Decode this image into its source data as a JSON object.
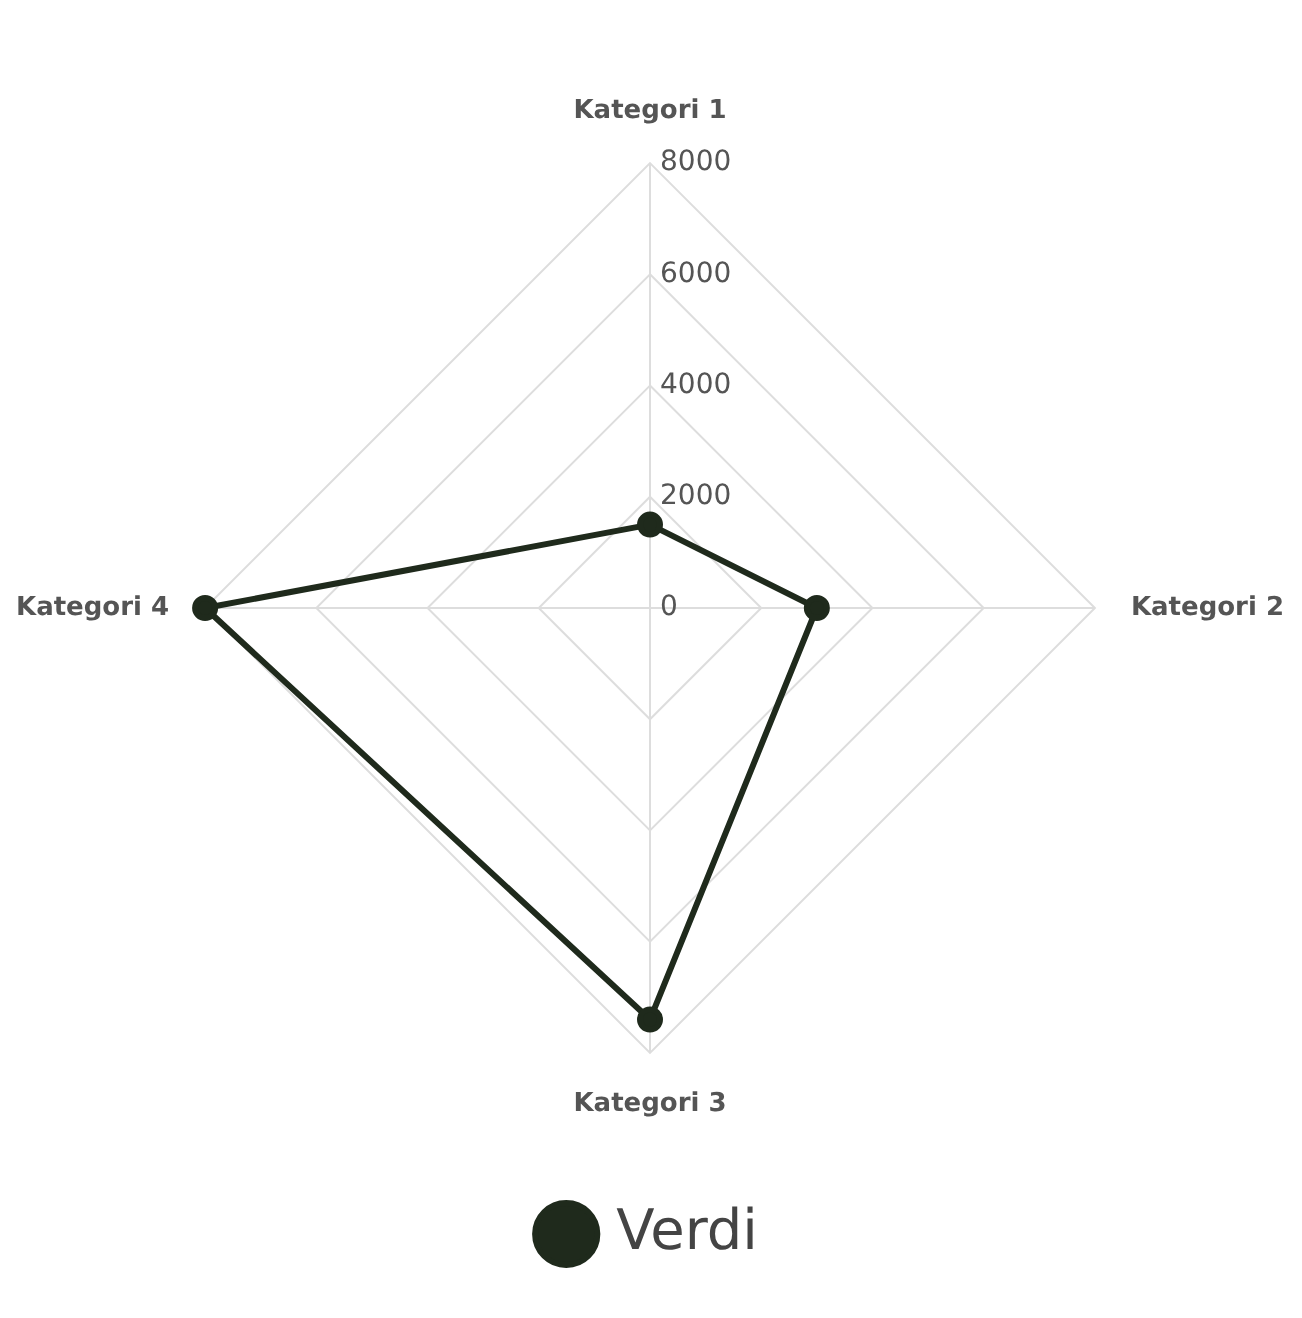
{
  "chart_data": {
    "type": "radar",
    "categories": [
      "Kategori 1",
      "Kategori 2",
      "Kategori 3",
      "Kategori 4"
    ],
    "series": [
      {
        "name": "Verdi",
        "color": "#1f2a1c",
        "values": [
          1500,
          3000,
          7400,
          8000
        ]
      }
    ],
    "ylim": [
      0,
      8000
    ],
    "yticks": [
      0,
      2000,
      4000,
      6000,
      8000
    ],
    "grid": true,
    "legend": "bottom",
    "marker": "circle"
  }
}
